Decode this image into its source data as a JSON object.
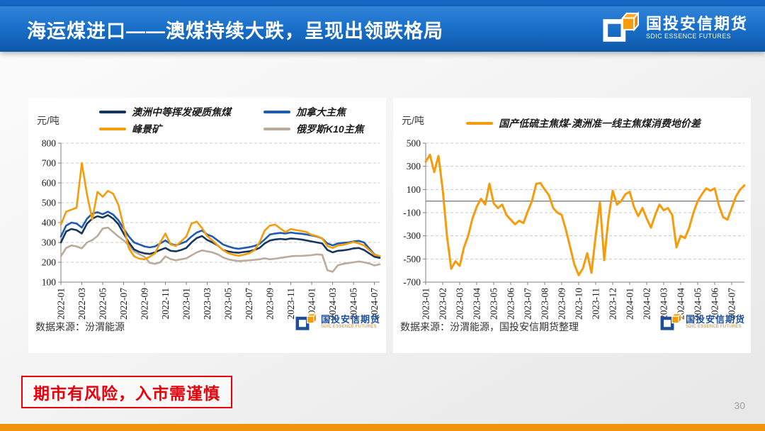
{
  "slide": {
    "title": "海运煤进口——澳煤持续大跌，呈现出领跌格局",
    "page_number": "30",
    "disclaimer": "期市有风险，入市需谨慎",
    "brand": {
      "name_cn": "国投安信期货",
      "name_en": "SDIC ESSENCE FUTURES"
    }
  },
  "colors": {
    "header_blue": "#1467c2",
    "accent_orange": "#f2930d",
    "warning_red": "#e8000a",
    "brand_blue": "#1b4f9c",
    "grid_gray": "#c8c8c8",
    "axis_gray": "#7f7f7f"
  },
  "chart_data": [
    {
      "type": "line",
      "unit_label": "元/吨",
      "source_note": "数据来源：汾渭能源",
      "ylim": [
        100,
        800
      ],
      "yticks": [
        100,
        200,
        300,
        400,
        500,
        600,
        700,
        800
      ],
      "grid": "dashed-horizontal",
      "legend_position": "top",
      "x_tick_labels": [
        "2022-01",
        "2022-03",
        "2022-05",
        "2022-07",
        "2022-09",
        "2022-11",
        "2023-01",
        "2023-03",
        "2023-05",
        "2023-07",
        "2023-09",
        "2023-11",
        "2024-01",
        "2024-03",
        "2024-05",
        "2024-07"
      ],
      "x_points_per_month": 2,
      "series": [
        {
          "name": "澳洲中等挥发硬质焦煤",
          "color": "#17365d",
          "values": [
            300,
            355,
            368,
            362,
            345,
            395,
            420,
            432,
            425,
            438,
            420,
            392,
            345,
            300,
            265,
            252,
            245,
            242,
            250,
            262,
            272,
            258,
            255,
            262,
            272,
            300,
            322,
            332,
            312,
            300,
            285,
            262,
            255,
            250,
            248,
            252,
            255,
            262,
            272,
            295,
            310,
            315,
            318,
            315,
            320,
            318,
            315,
            310,
            305,
            300,
            295,
            262,
            250,
            258,
            260,
            264,
            270,
            272,
            262,
            245,
            228,
            222
          ]
        },
        {
          "name": "加拿大主焦",
          "color": "#1f5cb0",
          "values": [
            330,
            385,
            400,
            395,
            375,
            420,
            445,
            452,
            442,
            455,
            440,
            412,
            370,
            330,
            300,
            290,
            280,
            275,
            280,
            295,
            310,
            292,
            286,
            295,
            305,
            330,
            350,
            360,
            340,
            330,
            310,
            290,
            280,
            272,
            268,
            272,
            276,
            282,
            292,
            315,
            340,
            345,
            348,
            345,
            350,
            346,
            344,
            340,
            335,
            330,
            320,
            295,
            285,
            295,
            298,
            300,
            305,
            308,
            300,
            270,
            240,
            230
          ]
        },
        {
          "name": "峰景矿",
          "color": "#f59c0c",
          "values": [
            390,
            455,
            465,
            475,
            700,
            540,
            415,
            555,
            530,
            560,
            545,
            490,
            380,
            270,
            230,
            218,
            215,
            228,
            245,
            300,
            345,
            290,
            282,
            305,
            330,
            395,
            405,
            372,
            332,
            310,
            285,
            262,
            246,
            238,
            233,
            238,
            245,
            260,
            300,
            360,
            385,
            390,
            370,
            352,
            368,
            362,
            358,
            352,
            338,
            332,
            320,
            282,
            272,
            285,
            288,
            295,
            302,
            295,
            285,
            262,
            238,
            232
          ]
        },
        {
          "name": "俄罗斯K10主焦",
          "color": "#bbab9a",
          "values": [
            230,
            272,
            285,
            280,
            270,
            300,
            312,
            332,
            370,
            375,
            352,
            330,
            310,
            285,
            255,
            240,
            228,
            197,
            192,
            200,
            230,
            216,
            210,
            215,
            220,
            235,
            250,
            260,
            255,
            250,
            240,
            225,
            215,
            210,
            206,
            208,
            210,
            212,
            215,
            220,
            215,
            218,
            222,
            226,
            230,
            232,
            232,
            234,
            236,
            240,
            238,
            160,
            152,
            185,
            192,
            196,
            200,
            204,
            200,
            194,
            184,
            190
          ]
        }
      ]
    },
    {
      "type": "line",
      "unit_label": "元/吨",
      "source_note": "数据来源：汾渭能源，国投安信期货整理",
      "ylim": [
        -700,
        500
      ],
      "yticks": [
        -700,
        -500,
        -300,
        -100,
        100,
        300,
        500
      ],
      "zero_line": true,
      "grid": "dashed-horizontal",
      "legend_position": "top-center",
      "x_tick_labels": [
        "2023-01",
        "2023-02",
        "2023-03",
        "2023-04",
        "2023-05",
        "2023-06",
        "2023-07",
        "2023-08",
        "2023-09",
        "2023-10",
        "2023-11",
        "2023-12",
        "2024-01",
        "2024-02",
        "2024-03",
        "2024-04",
        "2024-05",
        "2024-06",
        "2024-07"
      ],
      "x_points_per_month": 4,
      "series": [
        {
          "name": "国产低硫主焦煤-澳洲准一线主焦煤消费地价差",
          "color": "#f59c0c",
          "values": [
            340,
            400,
            250,
            390,
            100,
            -300,
            -585,
            -520,
            -560,
            -400,
            -300,
            -150,
            -50,
            20,
            -30,
            150,
            -20,
            -60,
            -30,
            -120,
            -160,
            -200,
            -170,
            -190,
            -90,
            0,
            150,
            155,
            100,
            50,
            -60,
            -100,
            -120,
            -250,
            -400,
            -550,
            -640,
            -580,
            -450,
            -620,
            -300,
            -10,
            -510,
            -150,
            90,
            -30,
            0,
            60,
            80,
            -50,
            -130,
            -60,
            -150,
            -230,
            -120,
            -30,
            -80,
            -60,
            -120,
            -400,
            -300,
            -320,
            -230,
            -100,
            0,
            60,
            110,
            90,
            110,
            -40,
            -140,
            -160,
            -60,
            40,
            100,
            135
          ]
        }
      ]
    }
  ]
}
